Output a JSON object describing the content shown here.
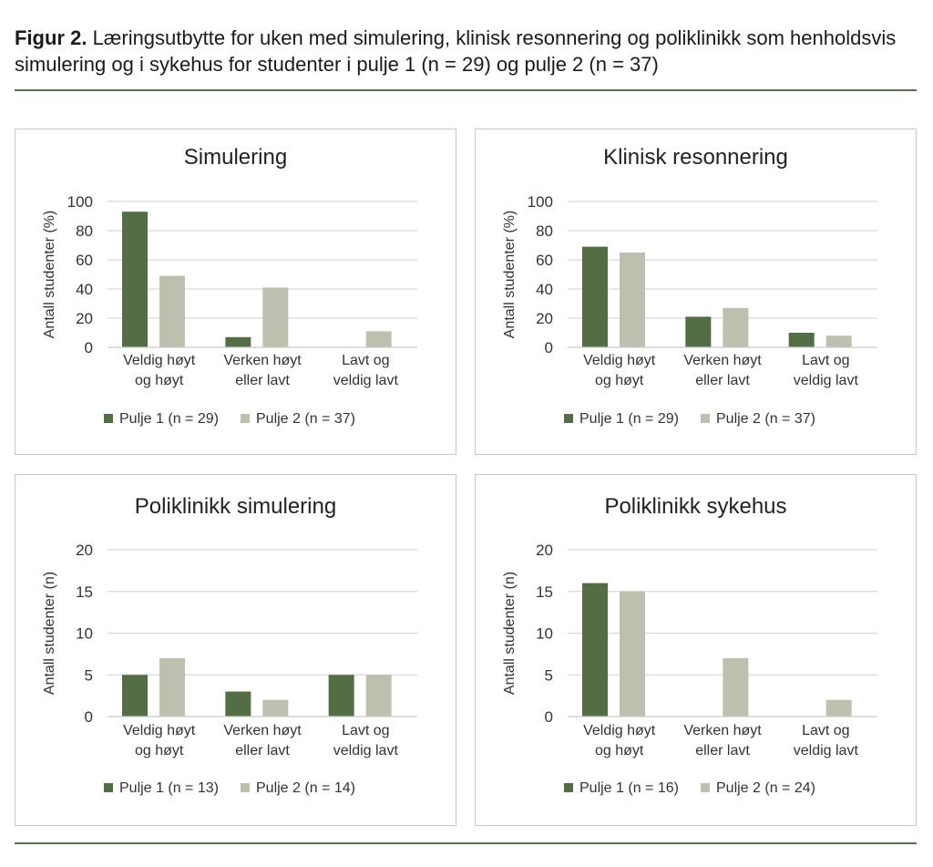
{
  "figure": {
    "label": "Figur 2.",
    "caption": " Læringsutbytte for uken med simulering, klinisk resonnering og poliklinikk som henholdsvis simulering og i sykehus for studenter i pulje 1 (n = 29) og pulje 2 (n = 37)"
  },
  "colors": {
    "pulje1": "#536e45",
    "pulje2": "#bcc0ae",
    "grid": "#d9d9d9",
    "rule": "#5a7050"
  },
  "chart_data": [
    {
      "type": "bar",
      "title": "Simulering",
      "ylabel": "Antall studenter (%)",
      "ylim": [
        0,
        100
      ],
      "yticks": [
        0,
        20,
        40,
        60,
        80,
        100
      ],
      "grid": true,
      "legend": "bottom",
      "categories": [
        [
          "Veldig høyt",
          "og høyt"
        ],
        [
          "Verken høyt",
          "eller lavt"
        ],
        [
          "Lavt og",
          "veldig lavt"
        ]
      ],
      "series": [
        {
          "name": "Pulje 1 (n = 29)",
          "values": [
            93,
            7,
            0
          ]
        },
        {
          "name": "Pulje 2 (n = 37)",
          "values": [
            49,
            41,
            11
          ]
        }
      ]
    },
    {
      "type": "bar",
      "title": "Klinisk resonnering",
      "ylabel": "Antall studenter (%)",
      "ylim": [
        0,
        100
      ],
      "yticks": [
        0,
        20,
        40,
        60,
        80,
        100
      ],
      "grid": true,
      "legend": "bottom",
      "categories": [
        [
          "Veldig høyt",
          "og høyt"
        ],
        [
          "Verken høyt",
          "eller lavt"
        ],
        [
          "Lavt og",
          "veldig lavt"
        ]
      ],
      "series": [
        {
          "name": "Pulje 1 (n = 29)",
          "values": [
            69,
            21,
            10
          ]
        },
        {
          "name": "Pulje 2 (n = 37)",
          "values": [
            65,
            27,
            8
          ]
        }
      ]
    },
    {
      "type": "bar",
      "title": "Poliklinikk simulering",
      "ylabel": "Antall studenter (n)",
      "ylim": [
        0,
        20
      ],
      "yticks": [
        0,
        5,
        10,
        15,
        20
      ],
      "grid": true,
      "legend": "bottom",
      "categories": [
        [
          "Veldig høyt",
          "og høyt"
        ],
        [
          "Verken høyt",
          "eller lavt"
        ],
        [
          "Lavt og",
          "veldig lavt"
        ]
      ],
      "series": [
        {
          "name": "Pulje 1 (n = 13)",
          "values": [
            5,
            3,
            5
          ]
        },
        {
          "name": "Pulje 2 (n = 14)",
          "values": [
            7,
            2,
            5
          ]
        }
      ]
    },
    {
      "type": "bar",
      "title": "Poliklinikk sykehus",
      "ylabel": "Antall studenter (n)",
      "ylim": [
        0,
        20
      ],
      "yticks": [
        0,
        5,
        10,
        15,
        20
      ],
      "grid": true,
      "legend": "bottom",
      "categories": [
        [
          "Veldig høyt",
          "og høyt"
        ],
        [
          "Verken høyt",
          "eller lavt"
        ],
        [
          "Lavt og",
          "veldig lavt"
        ]
      ],
      "series": [
        {
          "name": "Pulje 1 (n = 16)",
          "values": [
            16,
            0,
            0
          ]
        },
        {
          "name": "Pulje 2 (n = 24)",
          "values": [
            15,
            7,
            2
          ]
        }
      ]
    }
  ]
}
